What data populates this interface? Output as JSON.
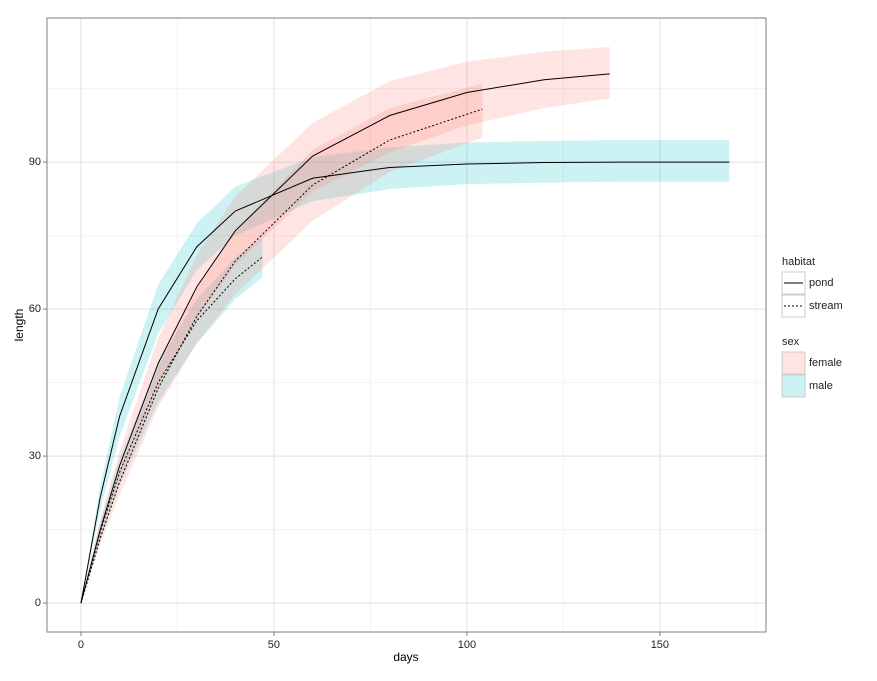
{
  "chart_data": {
    "type": "line",
    "x_label": "days",
    "y_label": "length",
    "xlim": [
      -8.8,
      177.5
    ],
    "ylim": [
      -5.9,
      119.4
    ],
    "xticks": [
      0,
      50,
      100,
      150
    ],
    "yticks": [
      0,
      30,
      60,
      90
    ],
    "x_minor_grid": [
      25,
      75,
      125,
      175
    ],
    "y_minor_grid": [
      15,
      45,
      75,
      105
    ],
    "grid": true,
    "legends": [
      {
        "title": "habitat",
        "items": [
          {
            "label": "pond",
            "dash": "none"
          },
          {
            "label": "stream",
            "dash": "2,2"
          }
        ]
      },
      {
        "title": "sex",
        "items": [
          {
            "label": "female",
            "color": "#F8766D"
          },
          {
            "label": "male",
            "color": "#00BFC4"
          }
        ]
      }
    ],
    "series": [
      {
        "habitat": 1,
        "sex": 1,
        "x": [
          0,
          5,
          10,
          20,
          30,
          40,
          47
        ],
        "values": [
          0,
          14.6,
          26.7,
          45.0,
          57.6,
          66.2,
          70.6
        ],
        "lower": [
          0,
          13,
          24,
          41,
          53,
          62,
          66.5
        ],
        "upper": [
          0,
          16.5,
          29.5,
          49,
          62,
          70.5,
          74.5
        ]
      },
      {
        "habitat": 0,
        "sex": 1,
        "x": [
          0,
          5,
          10,
          20,
          30,
          40,
          60,
          80,
          100,
          120,
          140,
          168
        ],
        "values": [
          0,
          21.6,
          38.1,
          60.0,
          72.7,
          80.0,
          86.7,
          88.9,
          89.6,
          89.9,
          90.0,
          90.0
        ],
        "lower": [
          0,
          19,
          34,
          55,
          68,
          75,
          82,
          84.5,
          85.5,
          85.8,
          86,
          86
        ],
        "upper": [
          0,
          24,
          42,
          65,
          77.5,
          85,
          91,
          93,
          94,
          94.3,
          94.5,
          94.5
        ]
      },
      {
        "habitat": 0,
        "sex": 0,
        "x": [
          0,
          5,
          10,
          20,
          30,
          40,
          60,
          80,
          100,
          120,
          137
        ],
        "values": [
          0,
          15.0,
          28.0,
          48.9,
          64.5,
          76.0,
          91.2,
          99.5,
          104.2,
          106.8,
          108.0
        ],
        "lower": [
          0,
          13,
          25,
          44,
          58,
          69,
          84,
          92,
          97.5,
          101,
          103
        ],
        "upper": [
          0,
          17,
          31,
          54,
          71,
          83,
          98,
          106.5,
          110.5,
          112.5,
          113.5
        ]
      },
      {
        "habitat": 1,
        "sex": 0,
        "x": [
          0,
          5,
          10,
          20,
          30,
          40,
          60,
          80,
          104
        ],
        "values": [
          0,
          13.2,
          24.7,
          43.8,
          58.5,
          69.8,
          85.3,
          94.5,
          100.8
        ],
        "lower": [
          0,
          12,
          22,
          40,
          53,
          63,
          78,
          88,
          95
        ],
        "upper": [
          0,
          14.5,
          27,
          48,
          64,
          76,
          92.5,
          101,
          106
        ]
      }
    ]
  }
}
